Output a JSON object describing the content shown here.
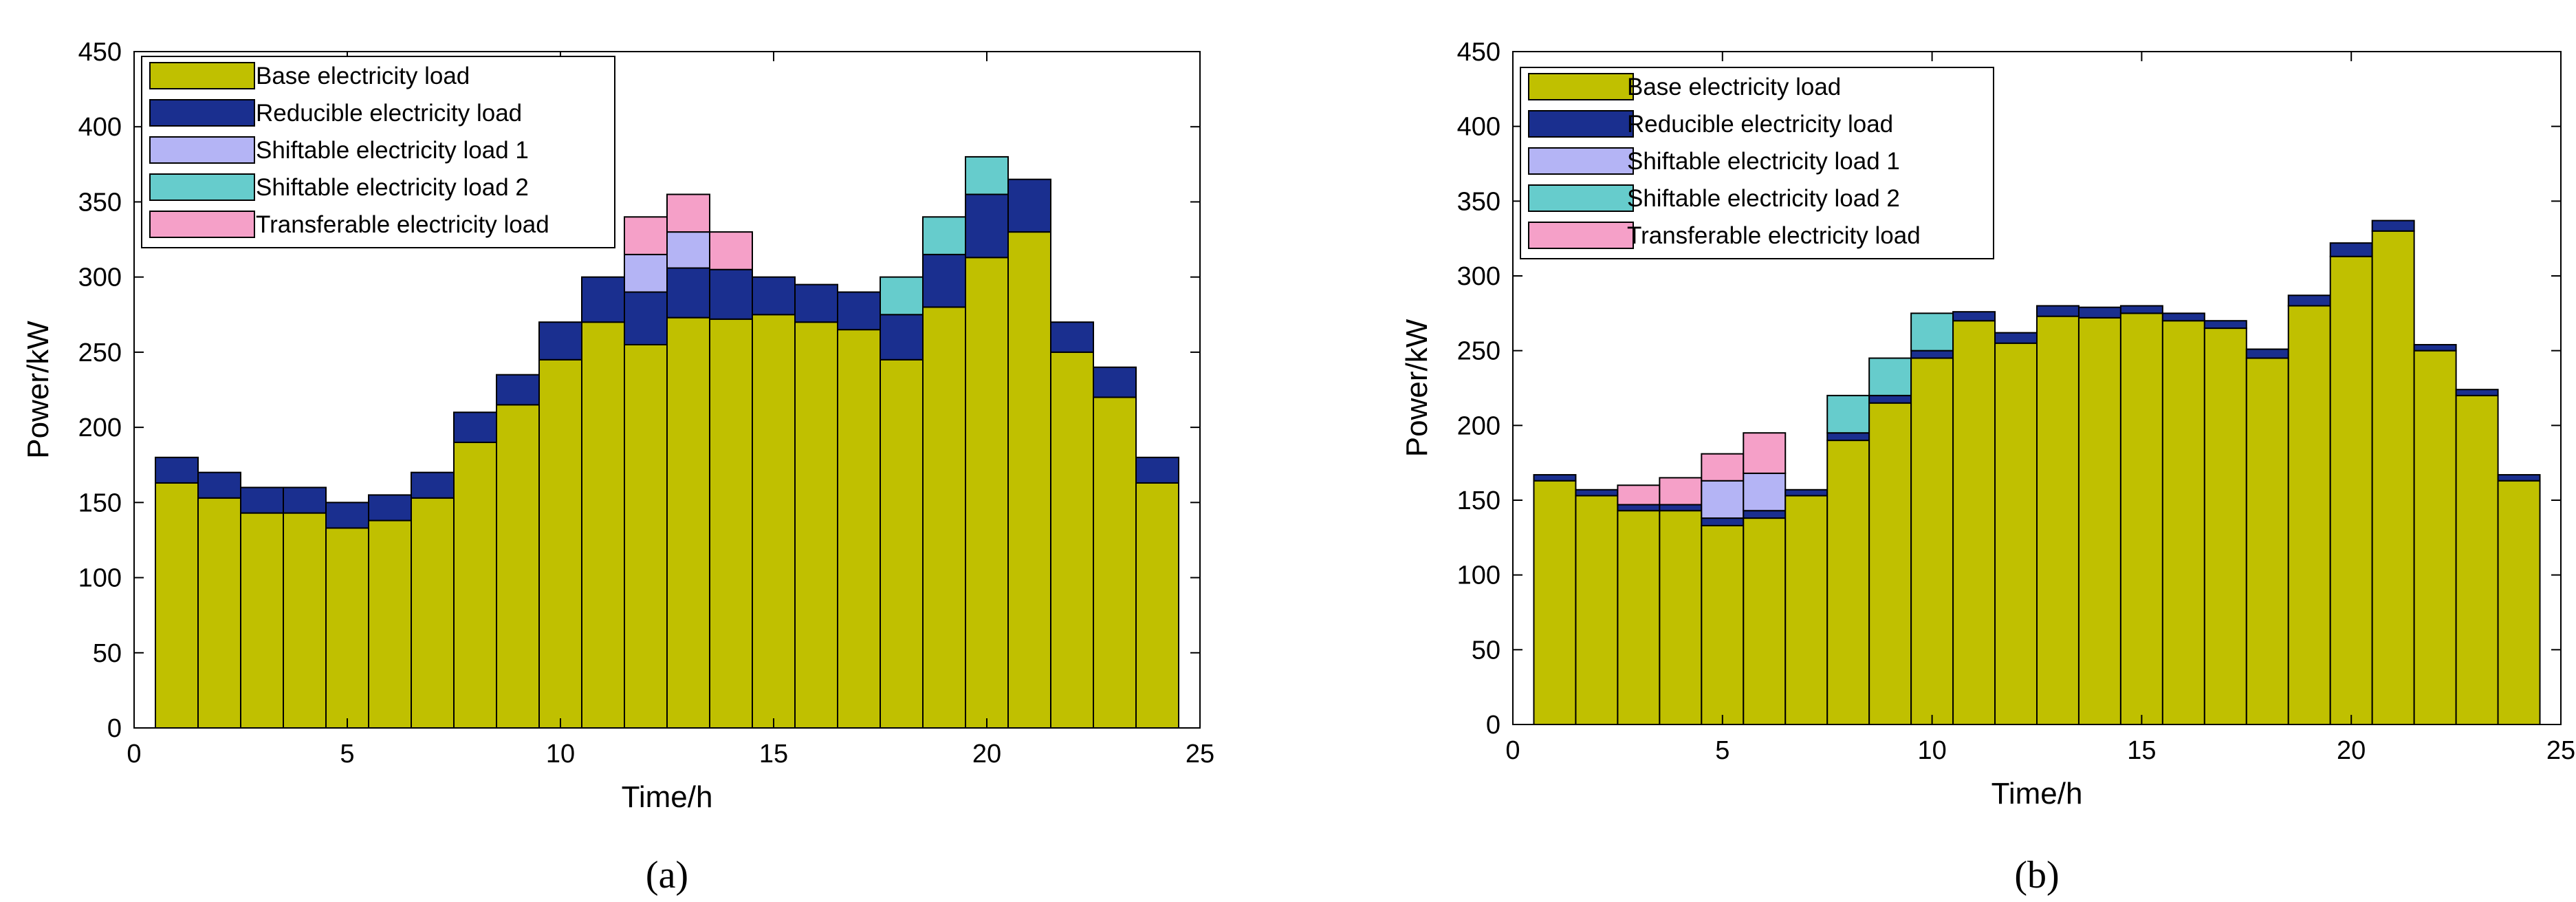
{
  "colors": {
    "base": "#c0c000",
    "reducible": "#1a2f8f",
    "shift1": "#b4b4f5",
    "shift2": "#66cccc",
    "transferable": "#f5a0c8",
    "axis": "#000000",
    "bar_edge": "#000000"
  },
  "chart_data": [
    {
      "type": "bar",
      "stacked": true,
      "caption": "(a)",
      "xlabel": "Time/h",
      "ylabel": "Power/kW",
      "xlim": [
        0,
        25
      ],
      "ylim": [
        0,
        450
      ],
      "xticks": [
        0,
        5,
        10,
        15,
        20,
        25
      ],
      "yticks": [
        0,
        50,
        100,
        150,
        200,
        250,
        300,
        350,
        400,
        450
      ],
      "legend_position": "top-left",
      "categories": [
        1,
        2,
        3,
        4,
        5,
        6,
        7,
        8,
        9,
        10,
        11,
        12,
        13,
        14,
        15,
        16,
        17,
        18,
        19,
        20,
        21,
        22,
        23,
        24
      ],
      "series": [
        {
          "name": "Base electricity load",
          "key": "base",
          "values": [
            163,
            153,
            143,
            143,
            133,
            138,
            153,
            190,
            215,
            245,
            270,
            255,
            273,
            272,
            275,
            270,
            265,
            245,
            280,
            313,
            330,
            250,
            220,
            163
          ]
        },
        {
          "name": "Reducible electricity load",
          "key": "reducible",
          "values": [
            17,
            17,
            17,
            17,
            17,
            17,
            17,
            20,
            20,
            25,
            30,
            35,
            33,
            33,
            25,
            25,
            25,
            30,
            35,
            42,
            35,
            20,
            20,
            17
          ]
        },
        {
          "name": "Shiftable electricity load 1",
          "key": "shift1",
          "values": [
            0,
            0,
            0,
            0,
            0,
            0,
            0,
            0,
            0,
            0,
            0,
            25,
            24,
            0,
            0,
            0,
            0,
            0,
            0,
            0,
            0,
            0,
            0,
            0
          ]
        },
        {
          "name": "Shiftable electricity load 2",
          "key": "shift2",
          "values": [
            0,
            0,
            0,
            0,
            0,
            0,
            0,
            0,
            0,
            0,
            0,
            0,
            0,
            0,
            0,
            0,
            0,
            25,
            25,
            25,
            0,
            0,
            0,
            0
          ]
        },
        {
          "name": "Transferable electricity load",
          "key": "transferable",
          "values": [
            0,
            0,
            0,
            0,
            0,
            0,
            0,
            0,
            0,
            0,
            0,
            25,
            25,
            25,
            0,
            0,
            0,
            0,
            0,
            0,
            0,
            0,
            0,
            0
          ]
        }
      ]
    },
    {
      "type": "bar",
      "stacked": true,
      "caption": "(b)",
      "xlabel": "Time/h",
      "ylabel": "Power/kW",
      "xlim": [
        0,
        25
      ],
      "ylim": [
        0,
        450
      ],
      "xticks": [
        0,
        5,
        10,
        15,
        20,
        25
      ],
      "yticks": [
        0,
        50,
        100,
        150,
        200,
        250,
        300,
        350,
        400,
        450
      ],
      "legend_position": "top-left",
      "categories": [
        1,
        2,
        3,
        4,
        5,
        6,
        7,
        8,
        9,
        10,
        11,
        12,
        13,
        14,
        15,
        16,
        17,
        18,
        19,
        20,
        21,
        22,
        23,
        24
      ],
      "series": [
        {
          "name": "Base electricity load",
          "key": "base",
          "values": [
            163,
            153,
            143,
            143,
            133,
            138,
            153,
            190,
            215,
            245,
            270,
            255,
            273,
            272,
            275,
            270,
            265,
            245,
            280,
            313,
            330,
            250,
            220,
            163
          ]
        },
        {
          "name": "Reducible electricity load",
          "key": "reducible",
          "values": [
            4,
            4,
            4,
            4,
            5,
            5,
            4,
            5,
            5,
            5,
            6,
            7,
            7,
            7,
            5,
            5,
            5,
            6,
            7,
            9,
            7,
            4,
            4,
            4
          ]
        },
        {
          "name": "Shiftable electricity load 1",
          "key": "shift1",
          "values": [
            0,
            0,
            0,
            0,
            25,
            25,
            0,
            0,
            0,
            0,
            0,
            0,
            0,
            0,
            0,
            0,
            0,
            0,
            0,
            0,
            0,
            0,
            0,
            0
          ]
        },
        {
          "name": "Shiftable electricity load 2",
          "key": "shift2",
          "values": [
            0,
            0,
            0,
            0,
            0,
            0,
            0,
            25,
            25,
            25,
            0,
            0,
            0,
            0,
            0,
            0,
            0,
            0,
            0,
            0,
            0,
            0,
            0,
            0
          ]
        },
        {
          "name": "Transferable electricity load",
          "key": "transferable",
          "values": [
            0,
            0,
            13,
            18,
            18,
            27,
            0,
            0,
            0,
            0,
            0,
            0,
            0,
            0,
            0,
            0,
            0,
            0,
            0,
            0,
            0,
            0,
            0,
            0
          ]
        }
      ]
    }
  ]
}
